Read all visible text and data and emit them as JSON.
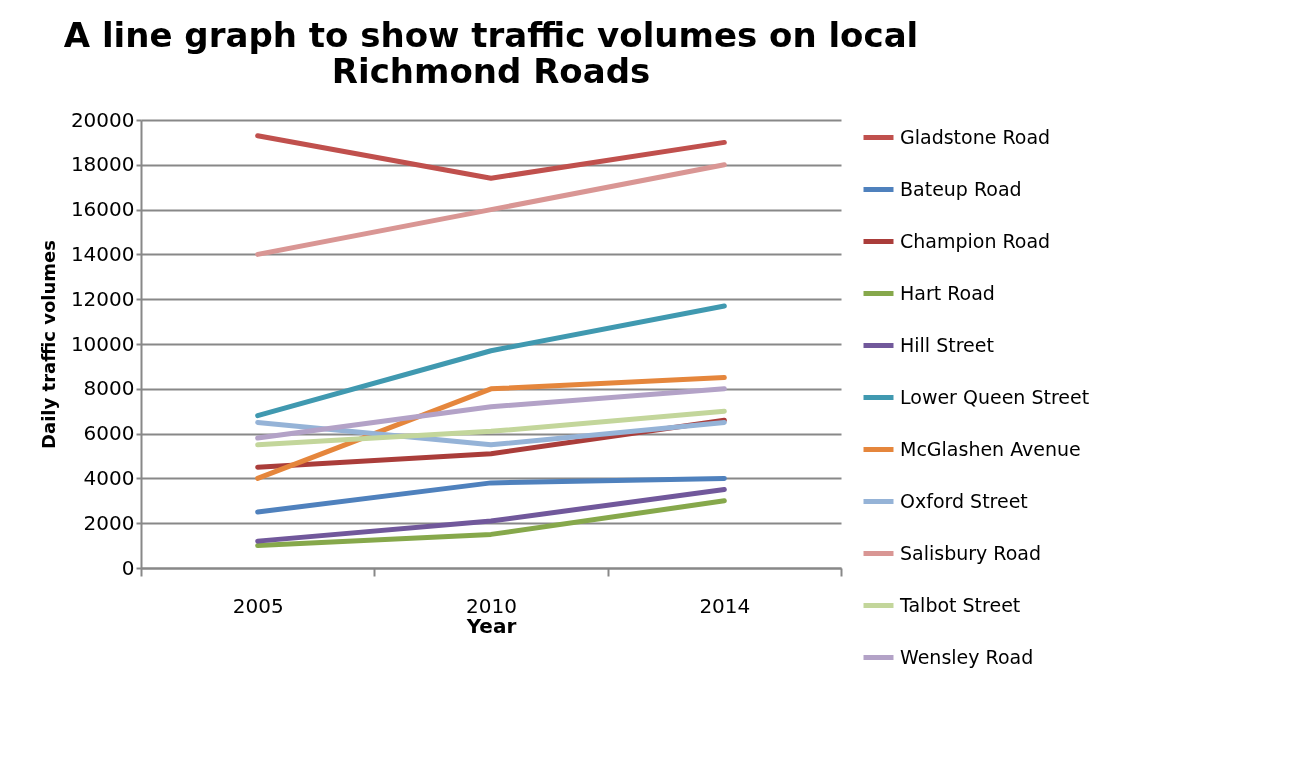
{
  "chart_data": {
    "type": "line",
    "title": [
      "A line graph to show traffic volumes on local",
      "Richmond Roads"
    ],
    "xlabel": "Year",
    "ylabel": "Daily traffic volumes",
    "categories": [
      "2005",
      "2010",
      "2014"
    ],
    "series": [
      {
        "name": "Gladstone Road",
        "color": "#c0504d",
        "values": [
          19300,
          17400,
          19000
        ]
      },
      {
        "name": "Bateup Road",
        "color": "#4f81bd",
        "values": [
          2500,
          3800,
          4000
        ]
      },
      {
        "name": "Champion Road",
        "color": "#aa3d3a",
        "values": [
          4500,
          5100,
          6600
        ]
      },
      {
        "name": "Hart Road",
        "color": "#86a84b",
        "values": [
          1000,
          1500,
          3000
        ]
      },
      {
        "name": "Hill Street",
        "color": "#71589b",
        "values": [
          1200,
          2100,
          3500
        ]
      },
      {
        "name": "Lower Queen Street",
        "color": "#4099b0",
        "values": [
          6800,
          9700,
          11700
        ]
      },
      {
        "name": "McGlashen Avenue",
        "color": "#e5863c",
        "values": [
          4000,
          8000,
          8500
        ]
      },
      {
        "name": "Oxford Street",
        "color": "#95b3d7",
        "values": [
          6500,
          5500,
          6500
        ]
      },
      {
        "name": "Salisbury Road",
        "color": "#d99694",
        "values": [
          14000,
          16000,
          18000
        ]
      },
      {
        "name": "Talbot Street",
        "color": "#c3d69b",
        "values": [
          5500,
          6100,
          7000
        ]
      },
      {
        "name": "Wensley Road",
        "color": "#b3a2c7",
        "values": [
          5800,
          7200,
          8000
        ]
      }
    ],
    "ylim": [
      0,
      20000
    ],
    "yticks": [
      0,
      2000,
      4000,
      6000,
      8000,
      10000,
      12000,
      14000,
      16000,
      18000,
      20000
    ],
    "grid": "y",
    "legend": "right",
    "line_style": "solid",
    "marker": "none"
  }
}
